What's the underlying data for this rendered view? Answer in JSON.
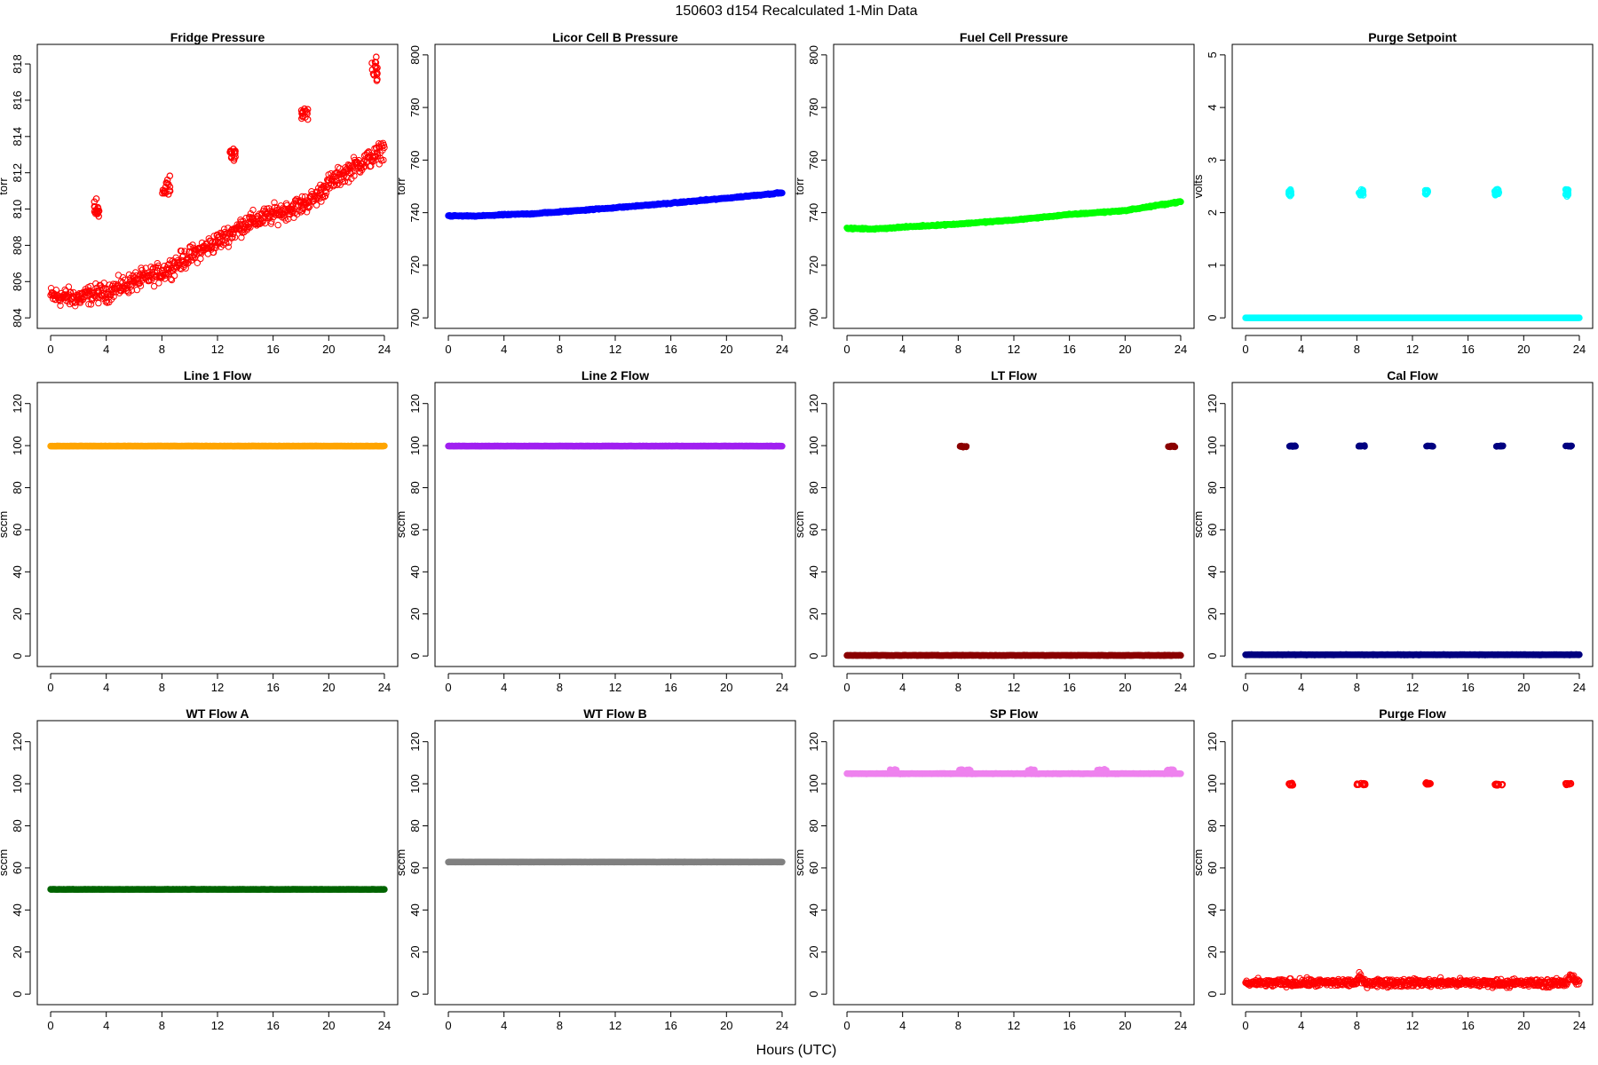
{
  "figure": {
    "title": "150603   d154   Recalculated 1-Min Data",
    "xlabel": "Hours (UTC)"
  },
  "chart_data": [
    {
      "type": "scatter",
      "title": "Fridge Pressure",
      "ylabel": "torr",
      "color": "#ff0000",
      "marker": "open",
      "xlim": [
        0,
        24
      ],
      "ylim": [
        804,
        818.5
      ],
      "xticks": [
        0,
        4,
        8,
        12,
        16,
        20,
        24
      ],
      "yticks": [
        804,
        806,
        808,
        810,
        812,
        814,
        816,
        818
      ],
      "trend": [
        [
          0,
          805.2
        ],
        [
          2,
          805.1
        ],
        [
          3,
          805.3
        ],
        [
          4,
          805.4
        ],
        [
          6,
          806.0
        ],
        [
          8,
          806.5
        ],
        [
          10,
          807.4
        ],
        [
          12,
          808.2
        ],
        [
          14,
          809.2
        ],
        [
          16,
          809.7
        ],
        [
          18,
          810.2
        ],
        [
          19,
          810.6
        ],
        [
          20,
          811.4
        ],
        [
          22,
          812.4
        ],
        [
          23.5,
          813.0
        ],
        [
          24,
          813.4
        ]
      ],
      "scatter": 0.45,
      "clusters": [
        {
          "x": [
            3.1,
            3.5
          ],
          "y": 809.9,
          "spread": 0.45
        },
        {
          "x": [
            8.0,
            8.6
          ],
          "y": 811.3,
          "spread": 0.6
        },
        {
          "x": [
            12.9,
            13.3
          ],
          "y": 813.0,
          "spread": 0.3
        },
        {
          "x": [
            18.0,
            18.6
          ],
          "y": 815.1,
          "spread": 0.45
        },
        {
          "x": [
            23.1,
            23.5
          ],
          "y": 817.6,
          "spread": 0.6
        }
      ]
    },
    {
      "type": "scatter",
      "title": "Licor Cell B Pressure",
      "ylabel": "torr",
      "color": "#0000ff",
      "marker": "filled",
      "xlim": [
        0,
        24
      ],
      "ylim": [
        700,
        800
      ],
      "xticks": [
        0,
        4,
        8,
        12,
        16,
        20,
        24
      ],
      "yticks": [
        700,
        720,
        740,
        760,
        780,
        800
      ],
      "trend": [
        [
          0,
          738.8
        ],
        [
          2,
          738.7
        ],
        [
          4,
          739.2
        ],
        [
          6,
          739.6
        ],
        [
          8,
          740.3
        ],
        [
          12,
          741.9
        ],
        [
          16,
          743.6
        ],
        [
          20,
          745.5
        ],
        [
          24,
          747.6
        ]
      ],
      "scatter": 0.2,
      "clusters": []
    },
    {
      "type": "scatter",
      "title": "Fuel Cell Pressure",
      "ylabel": "torr",
      "color": "#00ff00",
      "marker": "filled",
      "xlim": [
        0,
        24
      ],
      "ylim": [
        700,
        800
      ],
      "xticks": [
        0,
        4,
        8,
        12,
        16,
        20,
        24
      ],
      "yticks": [
        700,
        720,
        740,
        760,
        780,
        800
      ],
      "trend": [
        [
          0,
          734.0
        ],
        [
          2,
          733.8
        ],
        [
          4,
          734.5
        ],
        [
          8,
          735.7
        ],
        [
          12,
          737.2
        ],
        [
          16,
          739.3
        ],
        [
          20,
          740.8
        ],
        [
          24,
          744.2
        ]
      ],
      "scatter": 0.2,
      "clusters": []
    },
    {
      "type": "scatter",
      "title": "Purge Setpoint",
      "ylabel": "volts",
      "color": "#00ffff",
      "marker": "mixed",
      "xlim": [
        0,
        24
      ],
      "ylim": [
        0,
        5
      ],
      "xticks": [
        0,
        4,
        8,
        12,
        16,
        20,
        24
      ],
      "yticks": [
        0,
        1,
        2,
        3,
        4,
        5
      ],
      "trend": [
        [
          0,
          0
        ],
        [
          24,
          0
        ]
      ],
      "scatter": 0.0,
      "clusters": [
        {
          "x": [
            3.1,
            3.3
          ],
          "y": 2.39,
          "spread": 0.06
        },
        {
          "x": [
            8.1,
            8.5
          ],
          "y": 2.39,
          "spread": 0.06
        },
        {
          "x": [
            12.9,
            13.1
          ],
          "y": 2.39,
          "spread": 0.06
        },
        {
          "x": [
            17.9,
            18.3
          ],
          "y": 2.39,
          "spread": 0.06
        },
        {
          "x": [
            23.0,
            23.2
          ],
          "y": 2.39,
          "spread": 0.06
        }
      ]
    },
    {
      "type": "scatter",
      "title": "Line 1 Flow",
      "ylabel": "sccm",
      "color": "#ffa500",
      "marker": "filled",
      "xlim": [
        0,
        24
      ],
      "ylim": [
        0,
        125
      ],
      "xticks": [
        0,
        4,
        8,
        12,
        16,
        20,
        24
      ],
      "yticks": [
        0,
        20,
        40,
        60,
        80,
        100,
        120
      ],
      "trend": [
        [
          0,
          99.8
        ],
        [
          24,
          99.8
        ]
      ],
      "scatter": 0.05,
      "clusters": []
    },
    {
      "type": "scatter",
      "title": "Line 2 Flow",
      "ylabel": "sccm",
      "color": "#a020f0",
      "marker": "filled",
      "xlim": [
        0,
        24
      ],
      "ylim": [
        0,
        125
      ],
      "xticks": [
        0,
        4,
        8,
        12,
        16,
        20,
        24
      ],
      "yticks": [
        0,
        20,
        40,
        60,
        80,
        100,
        120
      ],
      "trend": [
        [
          0,
          99.8
        ],
        [
          24,
          99.8
        ]
      ],
      "scatter": 0.05,
      "clusters": []
    },
    {
      "type": "scatter",
      "title": "LT Flow",
      "ylabel": "sccm",
      "color": "#8b0000",
      "marker": "filled",
      "xlim": [
        0,
        24
      ],
      "ylim": [
        0,
        125
      ],
      "xticks": [
        0,
        4,
        8,
        12,
        16,
        20,
        24
      ],
      "yticks": [
        0,
        20,
        40,
        60,
        80,
        100,
        120
      ],
      "trend": [
        [
          0,
          0.3
        ],
        [
          24,
          0.3
        ]
      ],
      "scatter": 0.1,
      "clusters": [
        {
          "x": [
            8.1,
            8.6
          ],
          "y": 99.6,
          "spread": 0.3
        },
        {
          "x": [
            23.1,
            23.6
          ],
          "y": 99.6,
          "spread": 0.3
        }
      ]
    },
    {
      "type": "scatter",
      "title": "Cal Flow",
      "ylabel": "sccm",
      "color": "#000080",
      "marker": "filled",
      "xlim": [
        0,
        24
      ],
      "ylim": [
        0,
        125
      ],
      "xticks": [
        0,
        4,
        8,
        12,
        16,
        20,
        24
      ],
      "yticks": [
        0,
        20,
        40,
        60,
        80,
        100,
        120
      ],
      "trend": [
        [
          0,
          0.6
        ],
        [
          24,
          0.6
        ]
      ],
      "scatter": 0.1,
      "clusters": [
        {
          "x": [
            3.1,
            3.6
          ],
          "y": 99.8,
          "spread": 0.2
        },
        {
          "x": [
            8.1,
            8.6
          ],
          "y": 99.8,
          "spread": 0.2
        },
        {
          "x": [
            13.0,
            13.5
          ],
          "y": 99.8,
          "spread": 0.2
        },
        {
          "x": [
            18.0,
            18.6
          ],
          "y": 99.8,
          "spread": 0.2
        },
        {
          "x": [
            23.0,
            23.5
          ],
          "y": 99.8,
          "spread": 0.2
        }
      ]
    },
    {
      "type": "scatter",
      "title": "WT Flow A",
      "ylabel": "sccm",
      "color": "#006400",
      "marker": "filled",
      "xlim": [
        0,
        24
      ],
      "ylim": [
        0,
        125
      ],
      "xticks": [
        0,
        4,
        8,
        12,
        16,
        20,
        24
      ],
      "yticks": [
        0,
        20,
        40,
        60,
        80,
        100,
        120
      ],
      "trend": [
        [
          0,
          49.8
        ],
        [
          24,
          49.8
        ]
      ],
      "scatter": 0.05,
      "clusters": []
    },
    {
      "type": "scatter",
      "title": "WT Flow B",
      "ylabel": "sccm",
      "color": "#808080",
      "marker": "filled",
      "xlim": [
        0,
        24
      ],
      "ylim": [
        0,
        125
      ],
      "xticks": [
        0,
        4,
        8,
        12,
        16,
        20,
        24
      ],
      "yticks": [
        0,
        20,
        40,
        60,
        80,
        100,
        120
      ],
      "trend": [
        [
          0,
          62.8
        ],
        [
          24,
          62.8
        ]
      ],
      "scatter": 0.05,
      "clusters": []
    },
    {
      "type": "scatter",
      "title": "SP Flow",
      "ylabel": "sccm",
      "color": "#ee82ee",
      "marker": "filled",
      "xlim": [
        0,
        24
      ],
      "ylim": [
        0,
        125
      ],
      "xticks": [
        0,
        4,
        8,
        12,
        16,
        20,
        24
      ],
      "yticks": [
        0,
        20,
        40,
        60,
        80,
        100,
        120
      ],
      "trend": [
        [
          0,
          104.8
        ],
        [
          24,
          104.8
        ]
      ],
      "scatter": 0.1,
      "clusters": [
        {
          "x": [
            3.1,
            3.6
          ],
          "y": 106.5,
          "spread": 0.3
        },
        {
          "x": [
            8.0,
            8.9
          ],
          "y": 106.5,
          "spread": 0.3
        },
        {
          "x": [
            13.0,
            13.5
          ],
          "y": 106.5,
          "spread": 0.3
        },
        {
          "x": [
            18.0,
            18.7
          ],
          "y": 106.5,
          "spread": 0.3
        },
        {
          "x": [
            23.0,
            23.5
          ],
          "y": 106.5,
          "spread": 0.3
        }
      ]
    },
    {
      "type": "scatter",
      "title": "Purge Flow",
      "ylabel": "sccm",
      "color": "#ff0000",
      "marker": "open",
      "xlim": [
        0,
        24
      ],
      "ylim": [
        0,
        125
      ],
      "xticks": [
        0,
        4,
        8,
        12,
        16,
        20,
        24
      ],
      "yticks": [
        0,
        20,
        40,
        60,
        80,
        100,
        120
      ],
      "trend": [
        [
          0,
          5.2
        ],
        [
          8,
          5.5
        ],
        [
          8.2,
          8.5
        ],
        [
          8.5,
          5.5
        ],
        [
          23,
          5.2
        ],
        [
          23.4,
          9.0
        ],
        [
          23.8,
          6.0
        ],
        [
          24,
          5.5
        ]
      ],
      "scatter": 1.6,
      "clusters": [
        {
          "x": [
            3.1,
            3.4
          ],
          "y": 99.7,
          "spread": 0.6
        },
        {
          "x": [
            8.0,
            8.6
          ],
          "y": 99.9,
          "spread": 0.5
        },
        {
          "x": [
            12.9,
            13.3
          ],
          "y": 100.0,
          "spread": 0.5
        },
        {
          "x": [
            17.9,
            18.5
          ],
          "y": 99.6,
          "spread": 0.4
        },
        {
          "x": [
            23.0,
            23.4
          ],
          "y": 99.9,
          "spread": 0.5
        }
      ]
    }
  ]
}
